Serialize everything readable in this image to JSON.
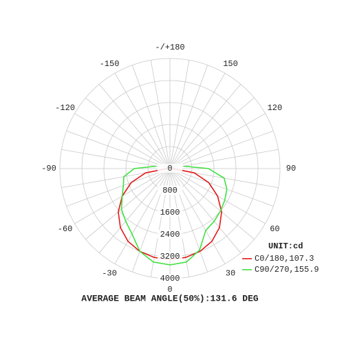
{
  "chart_data": {
    "type": "polar",
    "unit_label": "UNIT:cd",
    "footer": "AVERAGE BEAM ANGLE(50%):131.6 DEG",
    "angles": [
      -100,
      -90,
      -80,
      -70,
      -60,
      -50,
      -40,
      -30,
      -20,
      -10,
      0,
      10,
      20,
      30,
      40,
      50,
      60,
      70,
      80,
      90,
      100
    ],
    "series": [
      {
        "name": "C0/180,107.3",
        "color": "#e01818",
        "values": [
          null,
          100,
          900,
          1500,
          2000,
          2450,
          2800,
          3050,
          3200,
          3280,
          3300,
          3280,
          3200,
          3050,
          2800,
          2450,
          2000,
          1500,
          900,
          100,
          null
        ]
      },
      {
        "name": "C90/270,155.9",
        "color": "#3ee03e",
        "values": [
          500,
          1300,
          1700,
          1800,
          2000,
          2300,
          2500,
          2750,
          3200,
          3450,
          3500,
          3450,
          3150,
          2600,
          2500,
          2400,
          2300,
          2200,
          2000,
          1400,
          500
        ]
      }
    ],
    "rlim": [
      0,
      4000
    ],
    "rticks": [
      0,
      800,
      1600,
      2400,
      3200,
      4000
    ],
    "angle_ticks": [
      {
        "value": 180,
        "label": "-/+180"
      },
      150,
      120,
      90,
      60,
      30,
      0,
      -30,
      -60,
      -90,
      -120,
      -150
    ],
    "angle_grid_step": 10,
    "grid": true
  }
}
